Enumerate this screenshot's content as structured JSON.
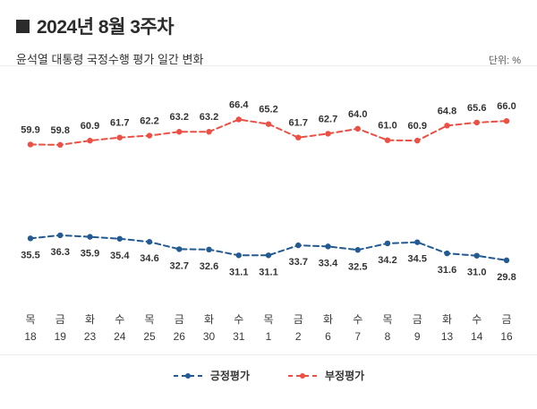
{
  "header": {
    "title": "2024년 8월 3주차",
    "subtitle": "윤석열 대통령 국정수행 평가 일간 변화",
    "unit_label": "단위: %"
  },
  "chart_data": {
    "type": "line",
    "title": "윤석열 대통령 국정수행 평가 일간 변화",
    "unit": "%",
    "line_style": "dashed",
    "marker": "circle",
    "grid": false,
    "legend_position": "bottom",
    "ylim": [
      20,
      75
    ],
    "categories": [
      {
        "day": "목",
        "date": "18"
      },
      {
        "day": "금",
        "date": "19"
      },
      {
        "day": "화",
        "date": "23"
      },
      {
        "day": "수",
        "date": "24"
      },
      {
        "day": "목",
        "date": "25"
      },
      {
        "day": "금",
        "date": "26"
      },
      {
        "day": "화",
        "date": "30"
      },
      {
        "day": "수",
        "date": "31"
      },
      {
        "day": "목",
        "date": "1"
      },
      {
        "day": "금",
        "date": "2"
      },
      {
        "day": "화",
        "date": "6"
      },
      {
        "day": "수",
        "date": "7"
      },
      {
        "day": "목",
        "date": "8"
      },
      {
        "day": "금",
        "date": "9"
      },
      {
        "day": "화",
        "date": "13"
      },
      {
        "day": "수",
        "date": "14"
      },
      {
        "day": "금",
        "date": "16"
      }
    ],
    "series": [
      {
        "key": "positive",
        "name": "긍정평가",
        "color": "#235a91",
        "values": [
          35.5,
          36.3,
          35.9,
          35.4,
          34.6,
          32.7,
          32.6,
          31.1,
          31.1,
          33.7,
          33.4,
          32.5,
          34.2,
          34.5,
          31.6,
          31.0,
          29.8
        ]
      },
      {
        "key": "negative",
        "name": "부정평가",
        "color": "#ec4f44",
        "values": [
          59.9,
          59.8,
          60.9,
          61.7,
          62.2,
          63.2,
          63.2,
          66.4,
          65.2,
          61.7,
          62.7,
          64.0,
          61.0,
          60.9,
          64.8,
          65.6,
          66.0
        ]
      }
    ]
  }
}
